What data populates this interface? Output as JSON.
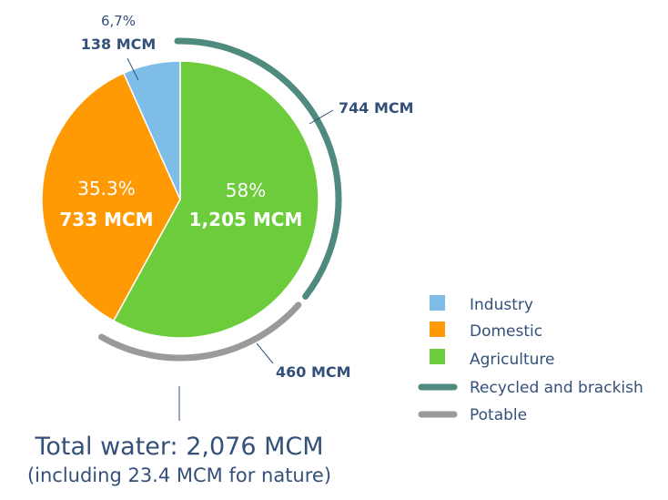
{
  "chart_data": {
    "type": "pie",
    "slices": [
      {
        "name": "Agriculture",
        "percent": 58,
        "value": 1205,
        "pct_label": "58%",
        "value_label": "1,205 MCM",
        "color": "#6dcc3b"
      },
      {
        "name": "Domestic",
        "percent": 35.3,
        "value": 733,
        "pct_label": "35.3%",
        "value_label": "733 MCM",
        "color": "#ff9a05"
      },
      {
        "name": "Industry",
        "percent": 6.7,
        "value": 138,
        "pct_label": "6,7%",
        "value_label": "138 MCM",
        "color": "#7ebde8"
      }
    ],
    "arcs": [
      {
        "name": "Recycled and brackish",
        "value": 744,
        "label": "744 MCM",
        "color": "#4e8a7e"
      },
      {
        "name": "Potable",
        "value": 460,
        "label": "460 MCM",
        "color": "#9a9a9a"
      }
    ],
    "legend": [
      {
        "label": "Industry",
        "color": "#7ebde8",
        "kind": "square"
      },
      {
        "label": "Domestic",
        "color": "#ff9a05",
        "kind": "square"
      },
      {
        "label": "Agriculture",
        "color": "#6dcc3b",
        "kind": "square"
      },
      {
        "label": "Recycled and brackish",
        "color": "#4e8a7e",
        "kind": "line"
      },
      {
        "label": "Potable",
        "color": "#9a9a9a",
        "kind": "line"
      }
    ],
    "legend_position": "bottom-right",
    "total_label": "Total water: 2,076 MCM",
    "total_sublabel": "(including 23.4 MCM for nature)"
  }
}
